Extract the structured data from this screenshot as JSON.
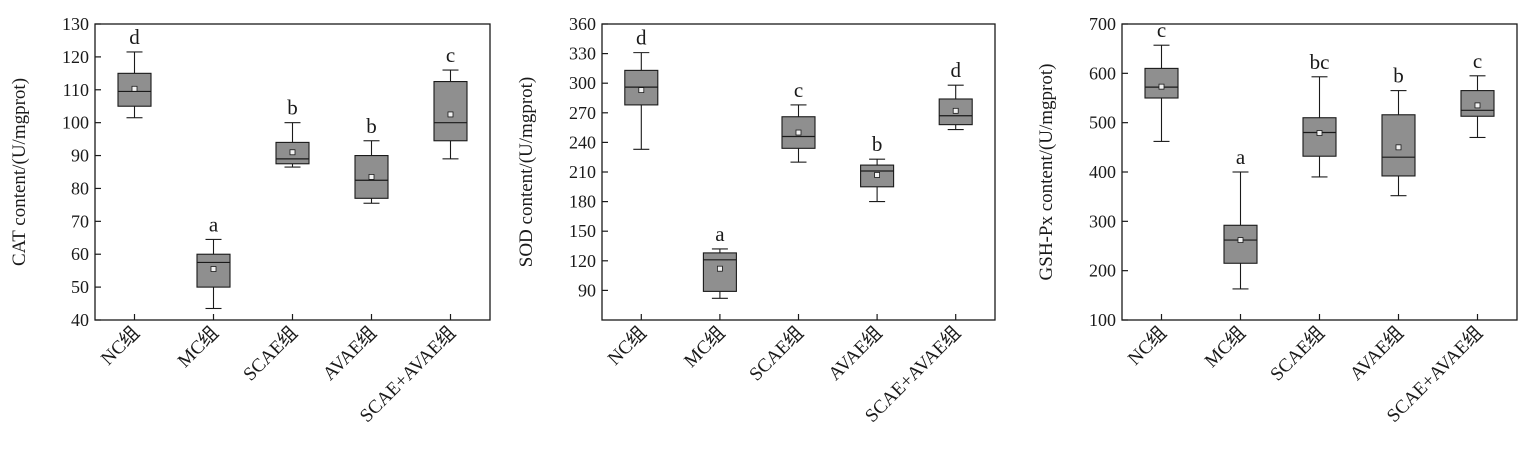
{
  "chart_data": [
    {
      "type": "box",
      "ylabel": "CAT content/(U/mgprot)",
      "ylim": [
        40,
        130
      ],
      "yticks": [
        40,
        50,
        60,
        70,
        80,
        90,
        100,
        110,
        120,
        130
      ],
      "categories": [
        "NC组",
        "MC组",
        "SCAE组",
        "AVAE组",
        "SCAE+AVAE组"
      ],
      "boxes": [
        {
          "min": 101.5,
          "q1": 105,
          "median": 109.5,
          "q3": 115,
          "max": 121.5,
          "mean": 110.3,
          "letter": "d"
        },
        {
          "min": 43.5,
          "q1": 50,
          "median": 57.5,
          "q3": 60,
          "max": 64.5,
          "mean": 55.5,
          "letter": "a"
        },
        {
          "min": 86.5,
          "q1": 87.5,
          "median": 89,
          "q3": 94,
          "max": 100,
          "mean": 91,
          "letter": "b"
        },
        {
          "min": 75.5,
          "q1": 77,
          "median": 82.5,
          "q3": 90,
          "max": 94.5,
          "mean": 83.5,
          "letter": "b"
        },
        {
          "min": 89,
          "q1": 94.5,
          "median": 100,
          "q3": 112.5,
          "max": 116,
          "mean": 102.5,
          "letter": "c"
        }
      ]
    },
    {
      "type": "box",
      "ylabel": "SOD content/(U/mgprot)",
      "ylim": [
        60,
        360
      ],
      "yticks": [
        90,
        120,
        150,
        180,
        210,
        240,
        270,
        300,
        330,
        360
      ],
      "categories": [
        "NC组",
        "MC组",
        "SCAE组",
        "AVAE组",
        "SCAE+AVAE组"
      ],
      "boxes": [
        {
          "min": 233,
          "q1": 278,
          "median": 296,
          "q3": 313,
          "max": 331,
          "mean": 293,
          "letter": "d"
        },
        {
          "min": 82,
          "q1": 89,
          "median": 121,
          "q3": 128,
          "max": 132,
          "mean": 112,
          "letter": "a"
        },
        {
          "min": 220,
          "q1": 234,
          "median": 246,
          "q3": 266,
          "max": 278,
          "mean": 250,
          "letter": "c"
        },
        {
          "min": 180,
          "q1": 195,
          "median": 211,
          "q3": 217,
          "max": 223,
          "mean": 207,
          "letter": "b"
        },
        {
          "min": 253,
          "q1": 258,
          "median": 267,
          "q3": 284,
          "max": 298,
          "mean": 272,
          "letter": "d"
        }
      ]
    },
    {
      "type": "box",
      "ylabel": "GSH-Px content/(U/mgprot)",
      "ylim": [
        100,
        700
      ],
      "yticks": [
        100,
        200,
        300,
        400,
        500,
        600,
        700
      ],
      "categories": [
        "NC组",
        "MC组",
        "SCAE组",
        "AVAE组",
        "SCAE+AVAE组"
      ],
      "boxes": [
        {
          "min": 462,
          "q1": 550,
          "median": 572,
          "q3": 610,
          "max": 657,
          "mean": 573,
          "letter": "c"
        },
        {
          "min": 163,
          "q1": 215,
          "median": 262,
          "q3": 292,
          "max": 400,
          "mean": 262,
          "letter": "a"
        },
        {
          "min": 390,
          "q1": 432,
          "median": 480,
          "q3": 510,
          "max": 593,
          "mean": 479,
          "letter": "bc"
        },
        {
          "min": 352,
          "q1": 392,
          "median": 430,
          "q3": 516,
          "max": 565,
          "mean": 450,
          "letter": "b"
        },
        {
          "min": 470,
          "q1": 513,
          "median": 525,
          "q3": 565,
          "max": 595,
          "mean": 535,
          "letter": "c"
        }
      ]
    }
  ]
}
